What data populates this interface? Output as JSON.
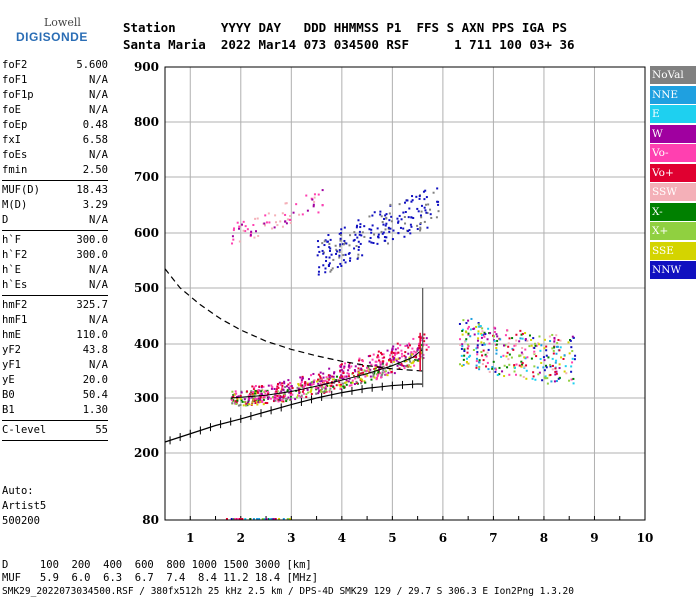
{
  "logo": {
    "top": "Lowell",
    "bottom": "DIGISONDE"
  },
  "header": {
    "line1": "Station      YYYY DAY   DDD HHMMSS P1  FFS S AXN PPS IGA PS",
    "line2": "Santa Maria  2022 Mar14 073 034500 RSF      1 711 100 03+ 36"
  },
  "params_group1": [
    {
      "k": "foF2",
      "v": "5.600"
    },
    {
      "k": "foF1",
      "v": "N/A"
    },
    {
      "k": "foF1p",
      "v": "N/A"
    },
    {
      "k": "foE",
      "v": "N/A"
    },
    {
      "k": "foEp",
      "v": "0.48"
    },
    {
      "k": "fxI",
      "v": "6.58"
    },
    {
      "k": "foEs",
      "v": "N/A"
    },
    {
      "k": "fmin",
      "v": "2.50"
    }
  ],
  "params_group2": [
    {
      "k": "MUF(D)",
      "v": "18.43"
    },
    {
      "k": "M(D)",
      "v": "3.29"
    },
    {
      "k": "D",
      "v": "N/A"
    }
  ],
  "params_group3": [
    {
      "k": "h`F",
      "v": "300.0"
    },
    {
      "k": "h`F2",
      "v": "300.0"
    },
    {
      "k": "h`E",
      "v": "N/A"
    },
    {
      "k": "h`Es",
      "v": "N/A"
    }
  ],
  "params_group4": [
    {
      "k": "hmF2",
      "v": "325.7"
    },
    {
      "k": "hmF1",
      "v": "N/A"
    },
    {
      "k": "hmE",
      "v": "110.0"
    },
    {
      "k": "yF2",
      "v": "43.8"
    },
    {
      "k": "yF1",
      "v": "N/A"
    },
    {
      "k": "yE",
      "v": "20.0"
    },
    {
      "k": "B0",
      "v": "50.4"
    },
    {
      "k": "B1",
      "v": "1.30"
    }
  ],
  "params_group5": [
    {
      "k": "C-level",
      "v": "55"
    }
  ],
  "auto": {
    "line1": "Auto:",
    "line2": "Artist5",
    "line3": "500200"
  },
  "legend": [
    {
      "label": "NoVal",
      "color": "#808080"
    },
    {
      "label": "NNE",
      "color": "#1fa0e0"
    },
    {
      "label": "E",
      "color": "#1ed0f0"
    },
    {
      "label": "W",
      "color": "#a000a0"
    },
    {
      "label": "Vo-",
      "color": "#ff40b0"
    },
    {
      "label": "Vo+",
      "color": "#e00030"
    },
    {
      "label": "SSW",
      "color": "#f4b0b8"
    },
    {
      "label": "X-",
      "color": "#008000"
    },
    {
      "label": "X+",
      "color": "#90d040"
    },
    {
      "label": "SSE",
      "color": "#d4d400"
    },
    {
      "label": "NNW",
      "color": "#1010c0"
    }
  ],
  "footer": {
    "line1": "D     100  200  400  600  800 1000 1500 3000 [km]",
    "line2": "MUF   5.9  6.0  6.3  6.7  7.4  8.4 11.2 18.4 [MHz]",
    "line3": "SMK29_2022073034500.RSF / 380fx512h 25 kHz 2.5 km / DPS-4D SMK29 129 / 29.7 S 306.3 E Ion2Png 1.3.20"
  },
  "chart_data": {
    "type": "scatter",
    "xlim": [
      0.5,
      10
    ],
    "ylim": [
      80,
      900
    ],
    "xticks": [
      1,
      2,
      3,
      4,
      5,
      6,
      7,
      8,
      9,
      10
    ],
    "yticks": [
      80,
      200,
      300,
      400,
      500,
      600,
      700,
      800,
      900
    ],
    "grid": true,
    "legend_position": "right",
    "ordinary_trace": [
      [
        1.8,
        300
      ],
      [
        2.5,
        305
      ],
      [
        3.0,
        312
      ],
      [
        3.5,
        322
      ],
      [
        4.0,
        333
      ],
      [
        4.5,
        345
      ],
      [
        5.0,
        360
      ],
      [
        5.4,
        375
      ],
      [
        5.6,
        390
      ]
    ],
    "extraordinary_trace": [
      [
        2.5,
        310
      ],
      [
        3.5,
        335
      ],
      [
        4.5,
        365
      ],
      [
        5.0,
        385
      ],
      [
        5.6,
        405
      ],
      [
        6.5,
        420
      ],
      [
        7.0,
        400
      ],
      [
        8.0,
        385
      ]
    ],
    "f2_upper_cluster": [
      [
        3.5,
        555
      ],
      [
        4.0,
        575
      ],
      [
        4.5,
        600
      ],
      [
        5.0,
        620
      ],
      [
        5.5,
        640
      ],
      [
        5.8,
        650
      ]
    ],
    "f2_upper_magenta": [
      [
        1.8,
        600
      ],
      [
        2.5,
        620
      ],
      [
        3.0,
        640
      ],
      [
        3.6,
        660
      ]
    ],
    "true_height_profile": [
      [
        0.5,
        220
      ],
      [
        1.0,
        235
      ],
      [
        1.5,
        250
      ],
      [
        2.0,
        262
      ],
      [
        2.5,
        275
      ],
      [
        3.0,
        288
      ],
      [
        3.5,
        300
      ],
      [
        4.0,
        310
      ],
      [
        4.5,
        318
      ],
      [
        5.0,
        323
      ],
      [
        5.5,
        326
      ],
      [
        5.6,
        325.7
      ]
    ],
    "muf_dashed_curve": [
      [
        0.5,
        535
      ],
      [
        0.8,
        500
      ],
      [
        1.2,
        470
      ],
      [
        1.6,
        445
      ],
      [
        2.0,
        425
      ],
      [
        2.5,
        405
      ],
      [
        3.0,
        390
      ],
      [
        3.5,
        378
      ],
      [
        4.0,
        368
      ],
      [
        4.5,
        360
      ],
      [
        5.0,
        354
      ],
      [
        5.6,
        350
      ]
    ]
  }
}
